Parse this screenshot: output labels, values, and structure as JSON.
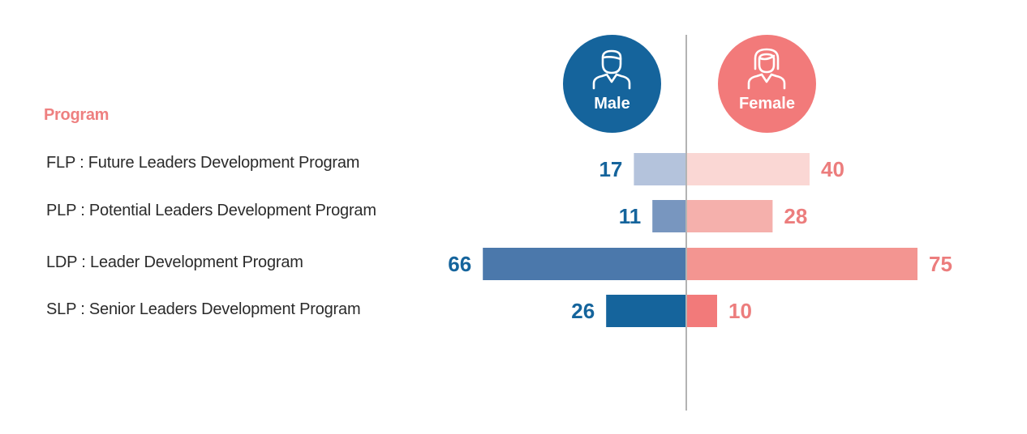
{
  "chart_data": {
    "type": "bar",
    "orientation": "horizontal-diverging",
    "header": "Program",
    "categories": [
      "FLP : Future Leaders Development Program",
      "PLP : Potential Leaders Development Program",
      "LDP : Leader Development Program",
      "SLP : Senior Leaders Development Program"
    ],
    "series": [
      {
        "name": "Male",
        "values": [
          17,
          11,
          66,
          26
        ],
        "colors": [
          "#b4c3dc",
          "#7896bf",
          "#4b78ab",
          "#15649c"
        ],
        "label_color": "#15649c"
      },
      {
        "name": "Female",
        "values": [
          40,
          28,
          75,
          10
        ],
        "colors": [
          "#fad7d4",
          "#f5b0ac",
          "#f39591",
          "#f27a7a"
        ],
        "label_color": "#ec7d7d"
      }
    ]
  },
  "colors": {
    "header": "#ee8080",
    "axis": "#b3b3b3",
    "male_badge": "#15649c",
    "female_badge": "#f27a7a"
  },
  "icons": {
    "male": "male-user-icon",
    "female": "female-user-icon"
  }
}
